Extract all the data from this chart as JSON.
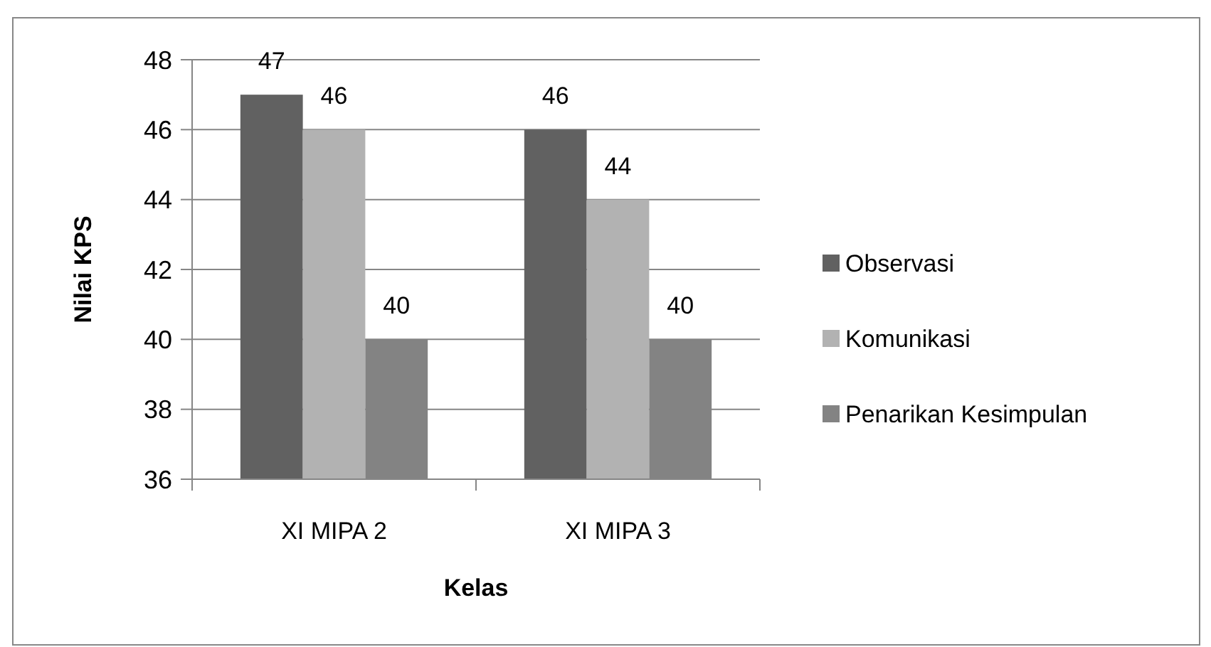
{
  "chart_data": {
    "type": "bar",
    "xlabel": "Kelas",
    "ylabel": "Nilai KPS",
    "categories": [
      "XI MIPA 2",
      "XI MIPA 3"
    ],
    "series": [
      {
        "name": "Observasi",
        "color": "#616161",
        "values": [
          47,
          46
        ]
      },
      {
        "name": "Komunikasi",
        "color": "#b2b2b2",
        "values": [
          46,
          44
        ]
      },
      {
        "name": "Penarikan Kesimpulan",
        "color": "#838383",
        "values": [
          40,
          40
        ]
      }
    ],
    "ylim": [
      36,
      48
    ],
    "yticks": [
      36,
      38,
      40,
      42,
      44,
      46,
      48
    ],
    "grid": "y",
    "legend": "right",
    "data_labels": true
  }
}
